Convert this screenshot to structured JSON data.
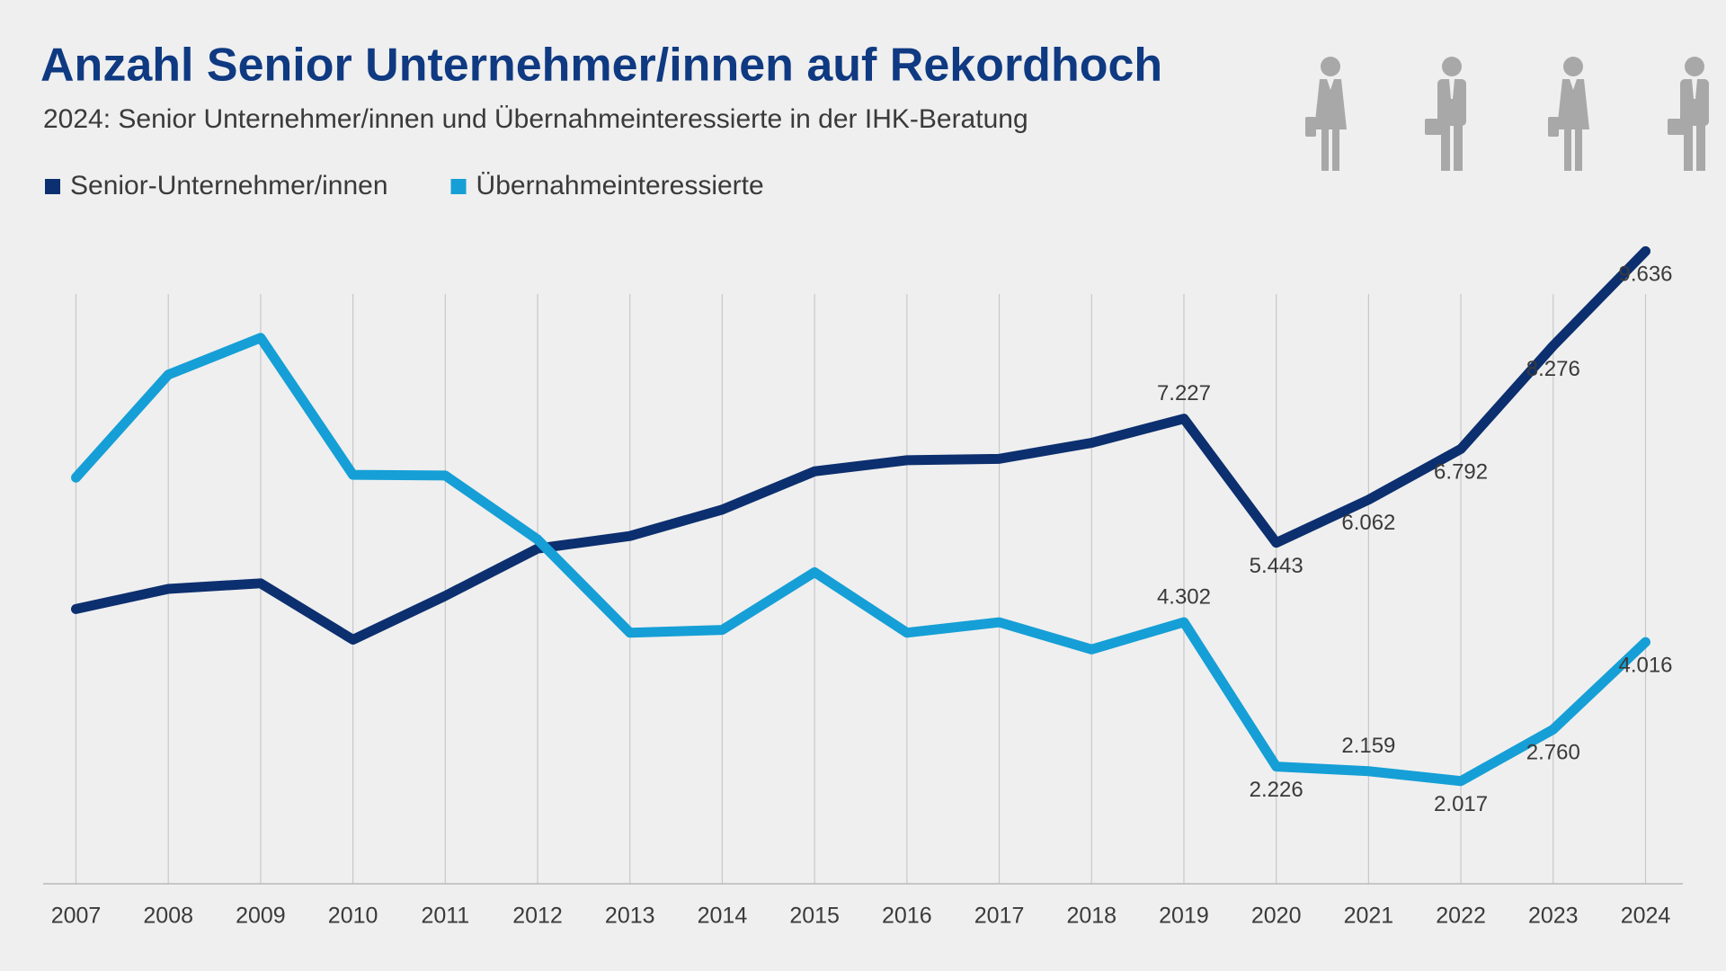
{
  "chart_data": {
    "type": "line",
    "title": "Anzahl Senior Unternehmer/innen  auf Rekordhoch",
    "subtitle": "2024: Senior Unternehmer/innen und Übernahmeinteressierte in der IHK-Beratung",
    "categories": [
      "2007",
      "2008",
      "2009",
      "2010",
      "2011",
      "2012",
      "2013",
      "2014",
      "2015",
      "2016",
      "2017",
      "2018",
      "2019",
      "2020",
      "2021",
      "2022",
      "2023",
      "2024"
    ],
    "series": [
      {
        "name": "Senior-Unternehmer/innen",
        "color": "#0c2f6f",
        "values": [
          4490,
          4780,
          4860,
          4050,
          4680,
          5360,
          5540,
          5920,
          6470,
          6630,
          6650,
          6880,
          7227,
          5443,
          6062,
          6792,
          8276,
          9636
        ],
        "value_labels": [
          null,
          null,
          null,
          null,
          null,
          null,
          null,
          null,
          null,
          null,
          null,
          null,
          "7.227",
          "5.443",
          "6.062",
          "6.792",
          "8.276",
          "9.636"
        ]
      },
      {
        "name": "Übernahmeinteressierte",
        "color": "#159fd6",
        "values": [
          6380,
          7860,
          8390,
          6420,
          6410,
          5490,
          4150,
          4190,
          5020,
          4150,
          4300,
          3910,
          4302,
          2226,
          2159,
          2017,
          2760,
          4016
        ],
        "value_labels": [
          null,
          null,
          null,
          null,
          null,
          null,
          null,
          null,
          null,
          null,
          null,
          null,
          "4.302",
          "2.226",
          "2.159",
          "2.017",
          "2.760",
          "4.016"
        ]
      }
    ],
    "ylim": [
      540,
      9020
    ],
    "grid": true
  }
}
